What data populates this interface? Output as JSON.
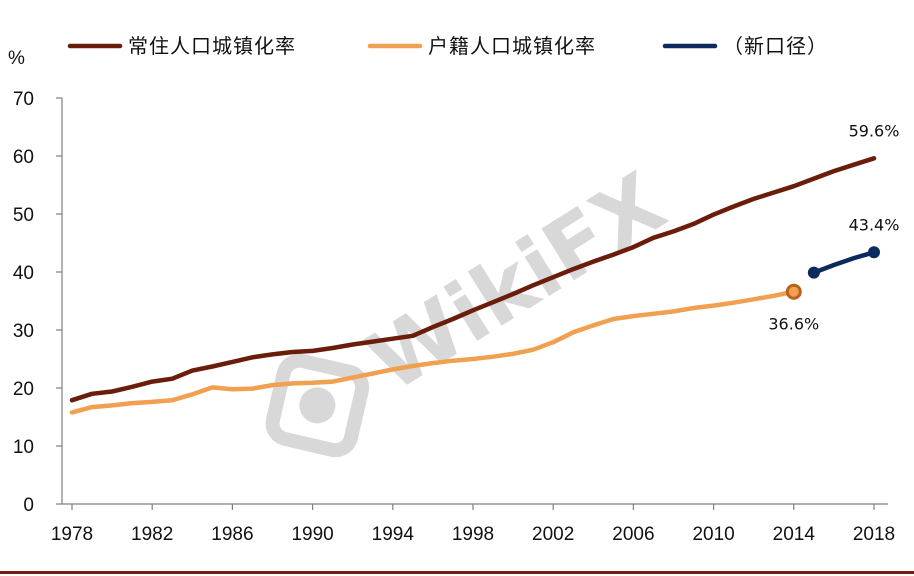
{
  "chart_data": {
    "type": "line",
    "ylabel": "%",
    "ylim": [
      0,
      70
    ],
    "yticks": [
      0,
      10,
      20,
      30,
      40,
      50,
      60,
      70
    ],
    "xlim": [
      1978,
      2018
    ],
    "xticks": [
      1978,
      1982,
      1986,
      1990,
      1994,
      1998,
      2002,
      2006,
      2010,
      2014,
      2018
    ],
    "grid": false,
    "legend_position": "top",
    "series": [
      {
        "name": "常住人口城镇化率",
        "color": "#6b1d0c",
        "x": [
          1978,
          1979,
          1980,
          1981,
          1982,
          1983,
          1984,
          1985,
          1986,
          1987,
          1988,
          1989,
          1990,
          1991,
          1992,
          1993,
          1994,
          1995,
          1996,
          1997,
          1998,
          1999,
          2000,
          2001,
          2002,
          2003,
          2004,
          2005,
          2006,
          2007,
          2008,
          2009,
          2010,
          2011,
          2012,
          2013,
          2014,
          2015,
          2016,
          2017,
          2018
        ],
        "y": [
          17.9,
          19.0,
          19.4,
          20.2,
          21.1,
          21.6,
          23.0,
          23.7,
          24.5,
          25.3,
          25.8,
          26.2,
          26.4,
          26.9,
          27.5,
          28.0,
          28.5,
          29.0,
          30.5,
          31.9,
          33.4,
          34.8,
          36.2,
          37.7,
          39.1,
          40.5,
          41.8,
          43.0,
          44.3,
          45.9,
          47.0,
          48.3,
          49.9,
          51.3,
          52.6,
          53.7,
          54.8,
          56.1,
          57.4,
          58.5,
          59.6
        ],
        "end_label": "59.6%"
      },
      {
        "name": "户籍人口城镇化率",
        "color": "#f0a050",
        "x": [
          1978,
          1979,
          1980,
          1981,
          1982,
          1983,
          1984,
          1985,
          1986,
          1987,
          1988,
          1989,
          1990,
          1991,
          1992,
          1993,
          1994,
          1995,
          1996,
          1997,
          1998,
          1999,
          2000,
          2001,
          2002,
          2003,
          2004,
          2005,
          2006,
          2007,
          2008,
          2009,
          2010,
          2011,
          2012,
          2013,
          2014
        ],
        "y": [
          15.8,
          16.7,
          17.0,
          17.4,
          17.6,
          17.9,
          18.9,
          20.1,
          19.8,
          19.9,
          20.5,
          20.8,
          20.9,
          21.1,
          21.8,
          22.5,
          23.2,
          23.8,
          24.3,
          24.7,
          25.0,
          25.4,
          25.9,
          26.6,
          27.9,
          29.6,
          30.8,
          31.9,
          32.4,
          32.8,
          33.2,
          33.8,
          34.2,
          34.7,
          35.3,
          35.9,
          36.6
        ],
        "end_label": "36.6%"
      },
      {
        "name": "（新口径）",
        "color": "#0d2a5e",
        "x": [
          2015,
          2016,
          2017,
          2018
        ],
        "y": [
          39.9,
          41.2,
          42.4,
          43.4
        ],
        "end_label": "43.4%"
      }
    ]
  },
  "watermark": "WikiFX"
}
